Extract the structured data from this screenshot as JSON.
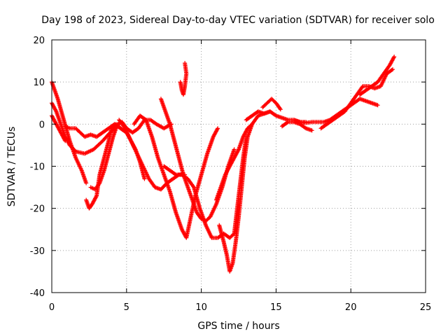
{
  "chart_data": {
    "type": "scatter",
    "title": "Day 198 of 2023, Sidereal Day-to-day VTEC variation (SDTVAR) for receiver solo",
    "xlabel": "GPS time / hours",
    "ylabel": "SDTVAR / TECUs",
    "xlim": [
      0,
      25
    ],
    "ylim": [
      -40,
      20
    ],
    "xticks": [
      0,
      5,
      10,
      15,
      20,
      25
    ],
    "yticks": [
      -40,
      -30,
      -20,
      -10,
      0,
      10,
      20
    ],
    "grid": true,
    "marker": "+",
    "color": "#ff0000",
    "series": [
      {
        "name": "arc-1",
        "points": [
          [
            0,
            10
          ],
          [
            0.4,
            6
          ],
          [
            0.8,
            1
          ],
          [
            1.2,
            -4
          ],
          [
            1.6,
            -8
          ],
          [
            2,
            -11
          ],
          [
            2.3,
            -14
          ]
        ]
      },
      {
        "name": "arc-2",
        "points": [
          [
            0,
            5
          ],
          [
            0.3,
            3
          ],
          [
            0.6,
            0
          ],
          [
            0.9,
            -3
          ],
          [
            1.2,
            -5
          ],
          [
            1.6,
            -6.5
          ],
          [
            2.2,
            -7
          ],
          [
            2.8,
            -6
          ],
          [
            3.4,
            -4
          ],
          [
            3.9,
            -2
          ],
          [
            4.2,
            -1
          ],
          [
            4.6,
            0.5
          ]
        ]
      },
      {
        "name": "arc-3",
        "points": [
          [
            0,
            2
          ],
          [
            0.3,
            0
          ],
          [
            0.6,
            -2
          ],
          [
            0.9,
            -4
          ]
        ]
      },
      {
        "name": "arc-4",
        "points": [
          [
            0.9,
            -0.5
          ],
          [
            1.2,
            -1
          ],
          [
            1.6,
            -1
          ],
          [
            1.9,
            -2
          ],
          [
            2.2,
            -3
          ],
          [
            2.6,
            -2.5
          ],
          [
            3,
            -3
          ],
          [
            3.4,
            -2
          ],
          [
            3.8,
            -1
          ],
          [
            4.2,
            0
          ],
          [
            4.6,
            -1
          ],
          [
            5,
            -2
          ]
        ]
      },
      {
        "name": "arc-5",
        "points": [
          [
            2.3,
            -18
          ],
          [
            2.5,
            -20
          ],
          [
            2.7,
            -19
          ],
          [
            3,
            -17
          ],
          [
            3.2,
            -12
          ],
          [
            3.5,
            -8
          ],
          [
            3.8,
            -4
          ],
          [
            4,
            -1
          ],
          [
            4.3,
            0
          ],
          [
            4.6,
            -1
          ],
          [
            5,
            -2
          ],
          [
            5.3,
            -4
          ],
          [
            5.6,
            -6
          ],
          [
            5.9,
            -9
          ],
          [
            6.2,
            -13
          ]
        ]
      },
      {
        "name": "arc-6",
        "points": [
          [
            2.6,
            -15
          ],
          [
            2.9,
            -15.5
          ],
          [
            3.2,
            -14
          ],
          [
            3.5,
            -11
          ],
          [
            3.8,
            -7
          ],
          [
            4.1,
            -3
          ],
          [
            4.4,
            0
          ],
          [
            4.7,
            0.5
          ],
          [
            5,
            -1
          ],
          [
            5.4,
            -2
          ],
          [
            5.8,
            -1
          ],
          [
            6.2,
            1
          ],
          [
            6.6,
            1
          ],
          [
            7,
            0
          ],
          [
            7.5,
            -1
          ],
          [
            8,
            0
          ]
        ]
      },
      {
        "name": "arc-7",
        "points": [
          [
            4.5,
            1
          ],
          [
            4.9,
            -1
          ],
          [
            5.3,
            -4
          ],
          [
            5.7,
            -7
          ],
          [
            6.1,
            -10
          ],
          [
            6.5,
            -13
          ],
          [
            6.9,
            -15
          ],
          [
            7.3,
            -15.5
          ],
          [
            7.7,
            -14
          ],
          [
            8.1,
            -13
          ],
          [
            8.5,
            -12
          ],
          [
            8.9,
            -12
          ]
        ]
      },
      {
        "name": "arc-8",
        "points": [
          [
            5.5,
            0
          ],
          [
            5.9,
            2
          ],
          [
            6.3,
            1
          ],
          [
            6.7,
            -3
          ],
          [
            7.1,
            -8
          ],
          [
            7.5,
            -12
          ],
          [
            7.9,
            -16
          ],
          [
            8.3,
            -21
          ],
          [
            8.7,
            -25
          ],
          [
            9,
            -27
          ],
          [
            9.3,
            -22
          ],
          [
            9.6,
            -17
          ],
          [
            10,
            -12
          ],
          [
            10.4,
            -7
          ],
          [
            10.8,
            -3
          ],
          [
            11.1,
            -1
          ]
        ]
      },
      {
        "name": "arc-9",
        "points": [
          [
            7.3,
            6
          ],
          [
            7.6,
            3
          ],
          [
            7.9,
            0
          ],
          [
            8.2,
            -4
          ],
          [
            8.5,
            -8
          ],
          [
            8.8,
            -12
          ],
          [
            9.1,
            -15
          ],
          [
            9.4,
            -18
          ],
          [
            9.7,
            -21
          ],
          [
            10,
            -22.5
          ],
          [
            10.3,
            -23
          ],
          [
            10.6,
            -22
          ],
          [
            11,
            -19
          ],
          [
            11.4,
            -15
          ],
          [
            11.8,
            -10
          ],
          [
            12.2,
            -6
          ]
        ]
      },
      {
        "name": "arc-10",
        "points": [
          [
            8.6,
            10
          ],
          [
            8.7,
            8
          ],
          [
            8.8,
            7
          ],
          [
            8.9,
            9
          ],
          [
            9,
            12
          ],
          [
            8.9,
            14.5
          ]
        ]
      },
      {
        "name": "arc-11",
        "points": [
          [
            7.5,
            -10
          ],
          [
            7.9,
            -11
          ],
          [
            8.3,
            -12
          ],
          [
            8.7,
            -12
          ],
          [
            9.1,
            -13
          ],
          [
            9.5,
            -15
          ],
          [
            9.9,
            -20
          ],
          [
            10.3,
            -24
          ],
          [
            10.7,
            -27
          ],
          [
            11.1,
            -27
          ],
          [
            11.5,
            -26
          ],
          [
            11.9,
            -27
          ],
          [
            12.2,
            -26
          ],
          [
            12.4,
            -20
          ],
          [
            12.6,
            -14
          ],
          [
            12.8,
            -8
          ],
          [
            13,
            -3
          ]
        ]
      },
      {
        "name": "arc-12",
        "points": [
          [
            11.2,
            -24
          ],
          [
            11.5,
            -28
          ],
          [
            11.7,
            -31
          ],
          [
            11.9,
            -35
          ],
          [
            12.1,
            -33
          ],
          [
            12.3,
            -28
          ],
          [
            12.5,
            -22
          ],
          [
            12.7,
            -15
          ],
          [
            12.9,
            -8
          ],
          [
            13.1,
            -3
          ],
          [
            13.4,
            0
          ],
          [
            13.8,
            2
          ],
          [
            14.2,
            2.5
          ],
          [
            14.6,
            3
          ]
        ]
      },
      {
        "name": "arc-13",
        "points": [
          [
            11,
            -18
          ],
          [
            11.3,
            -15
          ],
          [
            11.6,
            -12
          ],
          [
            11.9,
            -10
          ],
          [
            12.2,
            -8
          ],
          [
            12.5,
            -6
          ],
          [
            12.8,
            -3
          ],
          [
            13.1,
            -1
          ],
          [
            13.4,
            0
          ]
        ]
      },
      {
        "name": "arc-14",
        "points": [
          [
            13,
            1
          ],
          [
            13.4,
            2
          ],
          [
            13.8,
            3
          ],
          [
            14.2,
            2.5
          ],
          [
            14.6,
            3
          ],
          [
            15,
            2
          ],
          [
            15.4,
            1.5
          ],
          [
            15.8,
            1
          ],
          [
            16.2,
            1
          ],
          [
            16.6,
            0.5
          ],
          [
            17,
            0.5
          ]
        ]
      },
      {
        "name": "arc-15",
        "points": [
          [
            14.1,
            4
          ],
          [
            14.4,
            5
          ],
          [
            14.7,
            6
          ],
          [
            15,
            5
          ],
          [
            15.3,
            3.5
          ]
        ]
      },
      {
        "name": "arc-16",
        "points": [
          [
            15.4,
            -0.5
          ],
          [
            15.8,
            0.5
          ],
          [
            16.2,
            0.5
          ],
          [
            16.6,
            0
          ],
          [
            17,
            -1
          ],
          [
            17.4,
            -1.5
          ]
        ]
      },
      {
        "name": "arc-17",
        "points": [
          [
            16.2,
            1
          ],
          [
            16.6,
            0.5
          ],
          [
            17,
            0.3
          ],
          [
            17.4,
            0.5
          ],
          [
            17.8,
            0.5
          ],
          [
            18.2,
            0.5
          ],
          [
            18.6,
            1
          ],
          [
            19,
            2
          ],
          [
            19.4,
            3
          ],
          [
            19.8,
            4
          ],
          [
            20.2,
            5
          ],
          [
            20.6,
            6
          ],
          [
            21,
            5.5
          ],
          [
            21.4,
            5
          ],
          [
            21.8,
            4.5
          ]
        ]
      },
      {
        "name": "arc-18",
        "points": [
          [
            18,
            -1
          ],
          [
            18.4,
            0
          ],
          [
            18.8,
            1
          ],
          [
            19.2,
            2
          ],
          [
            19.6,
            3
          ],
          [
            20,
            5
          ],
          [
            20.4,
            7
          ],
          [
            20.8,
            9
          ],
          [
            21.2,
            9
          ],
          [
            21.6,
            8.5
          ],
          [
            22,
            9
          ],
          [
            22.4,
            12
          ],
          [
            22.8,
            13
          ]
        ]
      },
      {
        "name": "arc-19",
        "points": [
          [
            20.6,
            7
          ],
          [
            21,
            8
          ],
          [
            21.4,
            9
          ],
          [
            21.8,
            10
          ],
          [
            22.2,
            12
          ],
          [
            22.6,
            14
          ],
          [
            22.9,
            16
          ]
        ]
      }
    ]
  }
}
